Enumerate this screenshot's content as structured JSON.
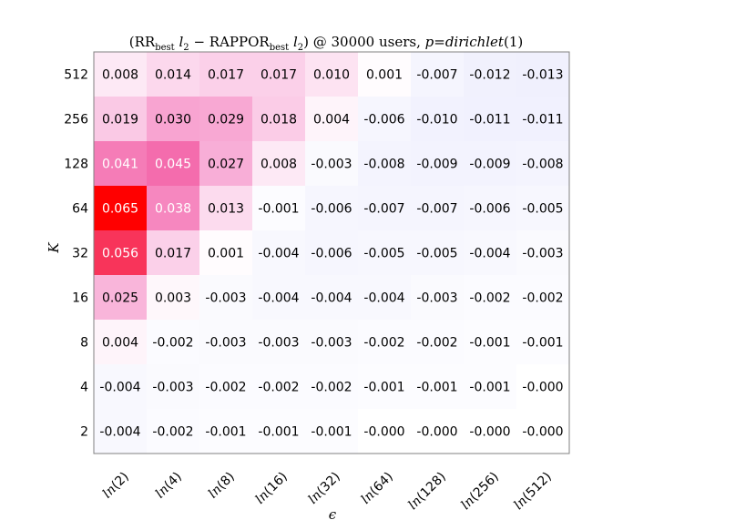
{
  "chart_data": {
    "type": "heatmap",
    "title": "(RRbest l2 − RAPPORbest l2) @ 30000 users, p=dirichlet(1)",
    "title_parts": {
      "open": "(RR",
      "sub1": "best",
      "l1": " l",
      "two1": "2",
      "minus": " − RAPPOR",
      "sub2": "best",
      "l2": " l",
      "two2": "2",
      "mid": ") @ 30000 users, ",
      "p": "p",
      "eq": "=",
      "dist": "dirichlet",
      "close": "(1)"
    },
    "xlabel": "ϵ",
    "ylabel": "K",
    "x_categories": [
      "ln(2)",
      "ln(4)",
      "ln(8)",
      "ln(16)",
      "ln(32)",
      "ln(64)",
      "ln(128)",
      "ln(256)",
      "ln(512)"
    ],
    "x_tick_parts": [
      {
        "fn": "ln",
        "arg": "(2)"
      },
      {
        "fn": "ln",
        "arg": "(4)"
      },
      {
        "fn": "ln",
        "arg": "(8)"
      },
      {
        "fn": "ln",
        "arg": "(16)"
      },
      {
        "fn": "ln",
        "arg": "(32)"
      },
      {
        "fn": "ln",
        "arg": "(64)"
      },
      {
        "fn": "ln",
        "arg": "(128)"
      },
      {
        "fn": "ln",
        "arg": "(256)"
      },
      {
        "fn": "ln",
        "arg": "(512)"
      }
    ],
    "y_categories": [
      "512",
      "256",
      "128",
      "64",
      "32",
      "16",
      "8",
      "4",
      "2"
    ],
    "values": [
      [
        0.008,
        0.014,
        0.017,
        0.017,
        0.01,
        0.001,
        -0.007,
        -0.012,
        -0.013
      ],
      [
        0.019,
        0.03,
        0.029,
        0.018,
        0.004,
        -0.006,
        -0.01,
        -0.011,
        -0.011
      ],
      [
        0.041,
        0.045,
        0.027,
        0.008,
        -0.003,
        -0.008,
        -0.009,
        -0.009,
        -0.008
      ],
      [
        0.065,
        0.038,
        0.013,
        -0.001,
        -0.006,
        -0.007,
        -0.007,
        -0.006,
        -0.005
      ],
      [
        0.056,
        0.017,
        0.001,
        -0.004,
        -0.006,
        -0.005,
        -0.005,
        -0.004,
        -0.003
      ],
      [
        0.025,
        0.003,
        -0.003,
        -0.004,
        -0.004,
        -0.004,
        -0.003,
        -0.002,
        -0.002
      ],
      [
        0.004,
        -0.002,
        -0.003,
        -0.003,
        -0.003,
        -0.002,
        -0.002,
        -0.001,
        -0.001
      ],
      [
        -0.004,
        -0.003,
        -0.002,
        -0.002,
        -0.002,
        -0.001,
        -0.001,
        -0.001,
        -0.0
      ],
      [
        -0.004,
        -0.002,
        -0.001,
        -0.001,
        -0.001,
        -0.0,
        -0.0,
        -0.0,
        -0.0
      ]
    ],
    "value_labels": [
      [
        "0.008",
        "0.014",
        "0.017",
        "0.017",
        "0.010",
        "0.001",
        "-0.007",
        "-0.012",
        "-0.013"
      ],
      [
        "0.019",
        "0.030",
        "0.029",
        "0.018",
        "0.004",
        "-0.006",
        "-0.010",
        "-0.011",
        "-0.011"
      ],
      [
        "0.041",
        "0.045",
        "0.027",
        "0.008",
        "-0.003",
        "-0.008",
        "-0.009",
        "-0.009",
        "-0.008"
      ],
      [
        "0.065",
        "0.038",
        "0.013",
        "-0.001",
        "-0.006",
        "-0.007",
        "-0.007",
        "-0.006",
        "-0.005"
      ],
      [
        "0.056",
        "0.017",
        "0.001",
        "-0.004",
        "-0.006",
        "-0.005",
        "-0.005",
        "-0.004",
        "-0.003"
      ],
      [
        "0.025",
        "0.003",
        "-0.003",
        "-0.004",
        "-0.004",
        "-0.004",
        "-0.003",
        "-0.002",
        "-0.002"
      ],
      [
        "0.004",
        "-0.002",
        "-0.003",
        "-0.003",
        "-0.003",
        "-0.002",
        "-0.002",
        "-0.001",
        "-0.001"
      ],
      [
        "-0.004",
        "-0.003",
        "-0.002",
        "-0.002",
        "-0.002",
        "-0.001",
        "-0.001",
        "-0.001",
        "-0.000"
      ],
      [
        "-0.004",
        "-0.002",
        "-0.001",
        "-0.001",
        "-0.001",
        "-0.000",
        "-0.000",
        "-0.000",
        "-0.000"
      ]
    ],
    "colormap": {
      "positive_max": 0.065,
      "negative_min": -0.065,
      "positive_colors": [
        "#ffffff",
        "#fbd2ea",
        "#f79ccd",
        "#f35ea3",
        "#ff0000"
      ],
      "negative_color": "#d0d0fa"
    },
    "grid": false
  }
}
